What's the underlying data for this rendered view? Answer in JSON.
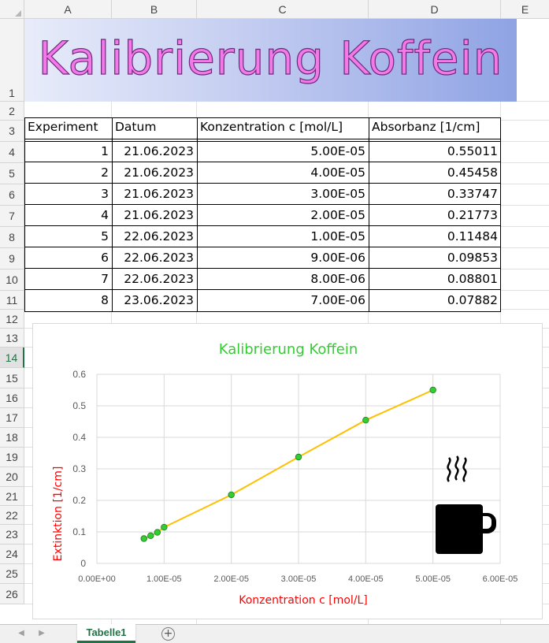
{
  "columns": [
    "A",
    "B",
    "C",
    "D",
    "E"
  ],
  "rows": [
    "1",
    "2",
    "3",
    "4",
    "5",
    "6",
    "7",
    "8",
    "9",
    "10",
    "11",
    "12",
    "13",
    "14",
    "15",
    "16",
    "17",
    "18",
    "19",
    "20",
    "21",
    "22",
    "23",
    "24",
    "25",
    "26"
  ],
  "active_row": "14",
  "banner": {
    "title": "Kalibrierung Koffein"
  },
  "table": {
    "headers": [
      "Experiment",
      "Datum",
      "Konzentration c [mol/L]",
      "Absorbanz [1/cm]"
    ],
    "rows": [
      [
        "1",
        "21.06.2023",
        "5.00E-05",
        "0.55011"
      ],
      [
        "2",
        "21.06.2023",
        "4.00E-05",
        "0.45458"
      ],
      [
        "3",
        "21.06.2023",
        "3.00E-05",
        "0.33747"
      ],
      [
        "4",
        "21.06.2023",
        "2.00E-05",
        "0.21773"
      ],
      [
        "5",
        "22.06.2023",
        "1.00E-05",
        "0.11484"
      ],
      [
        "6",
        "22.06.2023",
        "9.00E-06",
        "0.09853"
      ],
      [
        "7",
        "22.06.2023",
        "8.00E-06",
        "0.08801"
      ],
      [
        "8",
        "23.06.2023",
        "7.00E-06",
        "0.07882"
      ]
    ]
  },
  "chart_data": {
    "type": "line",
    "title": "Kalibrierung Koffein",
    "xlabel": "Konzentration c [mol/L]",
    "ylabel": "Extinktion [1/cm]",
    "x_ticks": [
      "0.00E+00",
      "1.00E-05",
      "2.00E-05",
      "3.00E-05",
      "4.00E-05",
      "5.00E-05",
      "6.00E-05"
    ],
    "y_ticks": [
      "0",
      "0.1",
      "0.2",
      "0.3",
      "0.4",
      "0.5",
      "0.6"
    ],
    "xlim": [
      0,
      6e-05
    ],
    "ylim": [
      0,
      0.6
    ],
    "grid": true,
    "series": [
      {
        "x": [
          7e-06,
          8e-06,
          9e-06,
          1e-05,
          2e-05,
          3e-05,
          4e-05,
          5e-05
        ],
        "y": [
          0.07882,
          0.08801,
          0.09853,
          0.11484,
          0.21773,
          0.33747,
          0.45458,
          0.55011
        ]
      }
    ],
    "colors": {
      "title": "#33cc33",
      "axis_labels": "#ff0000",
      "line": "#ffc000",
      "marker": "#33cc33"
    },
    "icon": "coffee-mug-icon"
  },
  "sheet_tabs": [
    "Tabelle1"
  ],
  "icons": {
    "add_sheet": "plus-circle-icon",
    "nav_prev": "chevron-left-icon",
    "nav_next": "chevron-right-icon"
  }
}
